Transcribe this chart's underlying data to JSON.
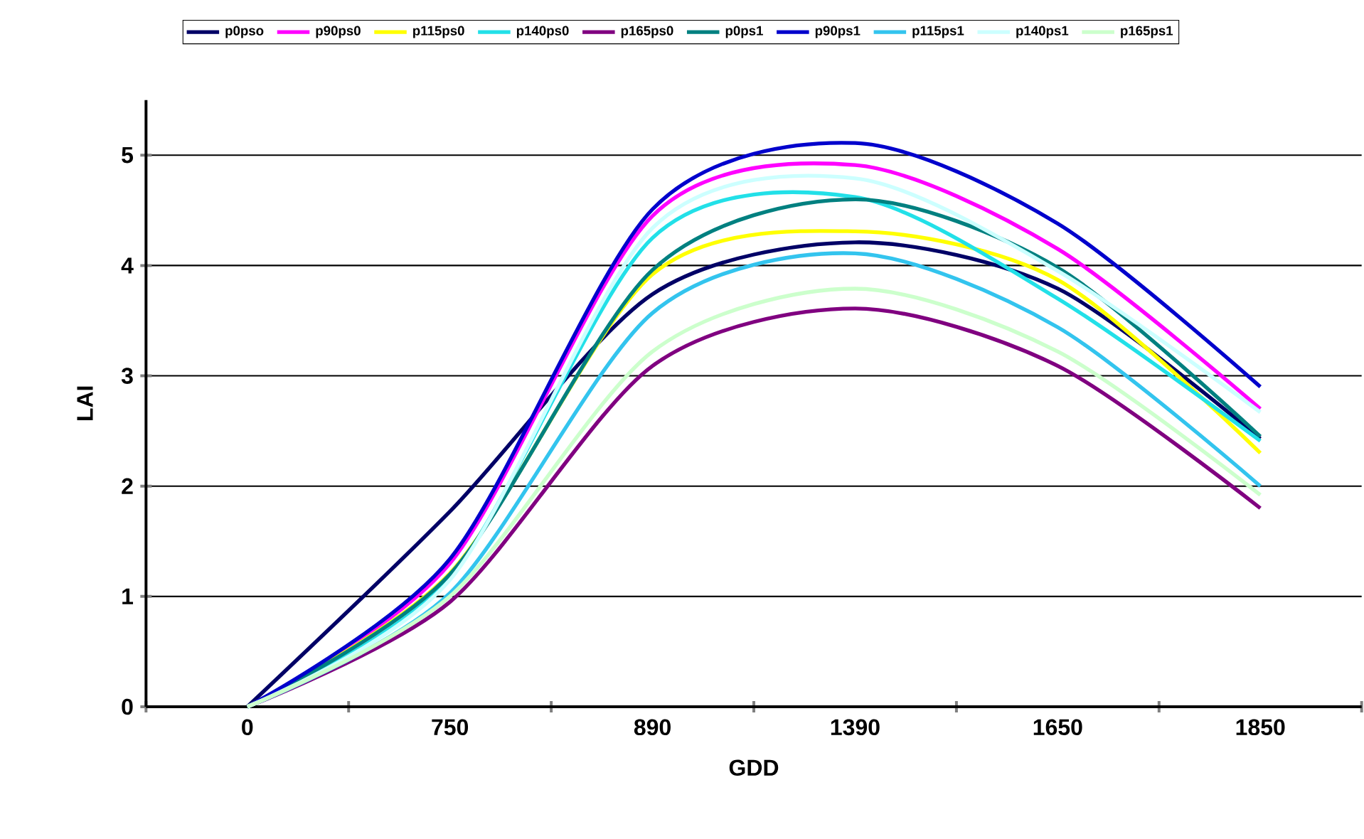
{
  "chart_data": {
    "type": "line",
    "xlabel": "GDD",
    "ylabel": "LAI",
    "categories": [
      "0",
      "750",
      "890",
      "1390",
      "1650",
      "1850"
    ],
    "ylim": [
      0,
      5.5
    ],
    "yticks": [
      0,
      1,
      2,
      3,
      4,
      5
    ],
    "grid": "y",
    "legend": "top",
    "series": [
      {
        "name": "p0pso",
        "color": "#000066",
        "values": [
          0,
          1.77,
          3.74,
          4.21,
          3.79,
          2.43
        ]
      },
      {
        "name": "p90ps0",
        "color": "#ff00ff",
        "values": [
          0,
          1.3,
          4.45,
          4.91,
          4.15,
          2.7
        ]
      },
      {
        "name": "p115ps0",
        "color": "#ffff00",
        "values": [
          0,
          1.21,
          3.92,
          4.31,
          3.87,
          2.3
        ]
      },
      {
        "name": "p140ps0",
        "color": "#22e0e8",
        "values": [
          0,
          1.17,
          4.25,
          4.62,
          3.7,
          2.41
        ]
      },
      {
        "name": "p165ps0",
        "color": "#800080",
        "values": [
          0,
          0.95,
          3.09,
          3.61,
          3.09,
          1.8
        ]
      },
      {
        "name": "p0ps1",
        "color": "#008080",
        "values": [
          0,
          1.2,
          3.96,
          4.6,
          3.98,
          2.45
        ]
      },
      {
        "name": "p90ps1",
        "color": "#0000cc",
        "values": [
          0,
          1.34,
          4.51,
          5.11,
          4.38,
          2.9
        ]
      },
      {
        "name": "p115ps1",
        "color": "#33c4ee",
        "values": [
          0,
          1.03,
          3.57,
          4.11,
          3.44,
          2.0
        ]
      },
      {
        "name": "p140ps1",
        "color": "#ccffff",
        "values": [
          0,
          1.15,
          4.34,
          4.79,
          3.95,
          2.67
        ]
      },
      {
        "name": "p165ps1",
        "color": "#ccffcc",
        "values": [
          0,
          1.0,
          3.22,
          3.79,
          3.22,
          1.92
        ]
      }
    ]
  }
}
